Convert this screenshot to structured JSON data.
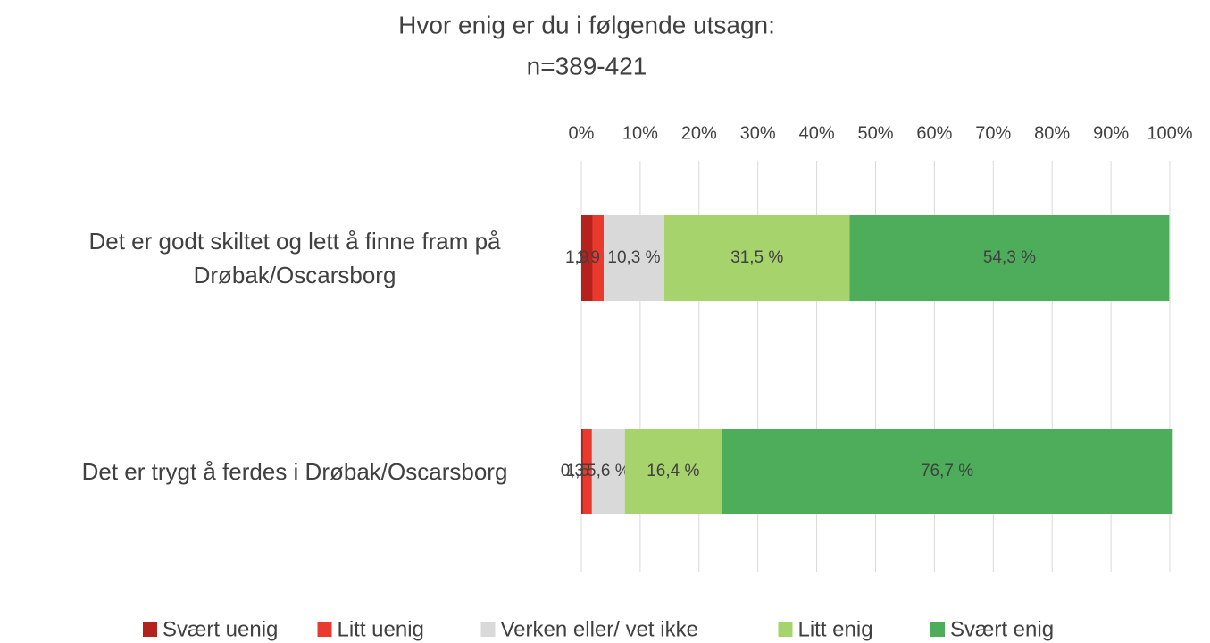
{
  "chart_data": {
    "type": "stacked_bar_horizontal",
    "title": "Hvor enig er du i følgende utsagn:",
    "subtitle": "n=389-421",
    "categories": [
      "Det er godt skiltet og lett å finne fram på Drøbak/Oscarsborg",
      "Det er trygt å ferdes i Drøbak/Oscarsborg"
    ],
    "series": [
      {
        "name": "Svært uenig",
        "color": "#b5221b",
        "values": [
          1.9,
          0.3
        ],
        "value_labels": [
          "1,9 %",
          "0,3 %"
        ]
      },
      {
        "name": "Litt uenig",
        "color": "#ea3a2d",
        "values": [
          1.9,
          1.5
        ],
        "value_labels": [
          "1,9 %",
          "1,5 %"
        ]
      },
      {
        "name": "Verken eller/ vet ikke",
        "color": "#d9d9d9",
        "values": [
          10.3,
          5.6
        ],
        "value_labels": [
          "10,3 %",
          "5,6 %"
        ]
      },
      {
        "name": "Litt enig",
        "color": "#a6d36c",
        "values": [
          31.5,
          16.4
        ],
        "value_labels": [
          "31,5 %",
          "16,4 %"
        ]
      },
      {
        "name": "Svært enig",
        "color": "#4dad5b",
        "values": [
          54.3,
          76.7
        ],
        "value_labels": [
          "54,3 %",
          "76,7 %"
        ]
      }
    ],
    "xlim": [
      0,
      100
    ],
    "xticks": [
      {
        "value": 0,
        "label": "0%"
      },
      {
        "value": 10,
        "label": "10%"
      },
      {
        "value": 20,
        "label": "20%"
      },
      {
        "value": 30,
        "label": "30%"
      },
      {
        "value": 40,
        "label": "40%"
      },
      {
        "value": 50,
        "label": "50%"
      },
      {
        "value": 60,
        "label": "60%"
      },
      {
        "value": 70,
        "label": "70%"
      },
      {
        "value": 80,
        "label": "80%"
      },
      {
        "value": 90,
        "label": "90%"
      },
      {
        "value": 100,
        "label": "100%"
      }
    ],
    "grid": true,
    "legend": "bottom"
  }
}
